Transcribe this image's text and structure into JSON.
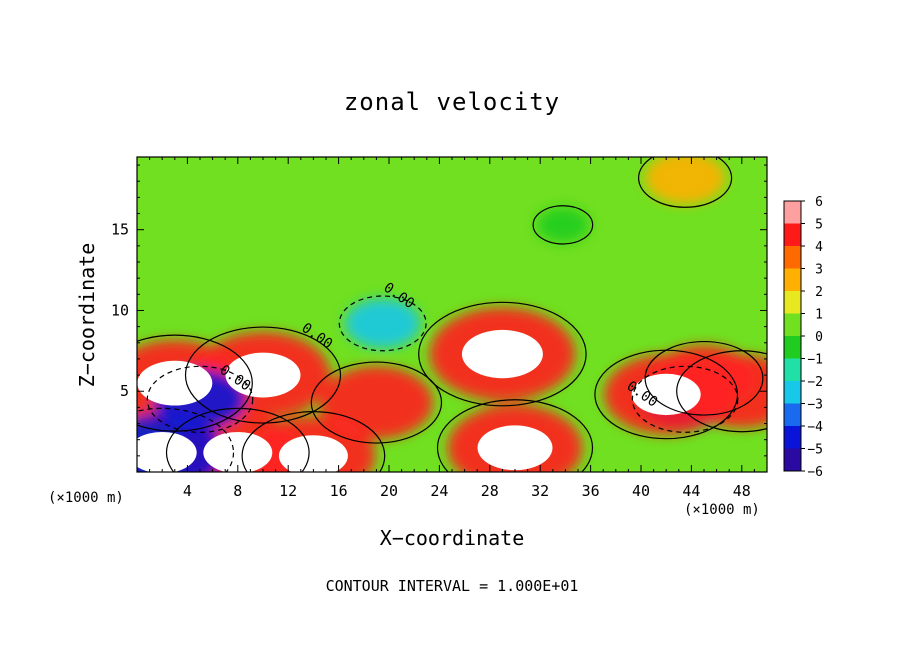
{
  "chart_data": {
    "type": "heatmap",
    "title": "zonal velocity",
    "xlabel": "X−coordinate",
    "ylabel": "Z−coordinate",
    "x_unit_label": "(×1000 m)",
    "x_ticks": [
      4,
      8,
      12,
      16,
      20,
      24,
      28,
      32,
      36,
      40,
      44,
      48
    ],
    "y_ticks": [
      5,
      10,
      15
    ],
    "xlim": [
      0,
      50
    ],
    "ylim": [
      0,
      19.5
    ],
    "colorbar": {
      "ticks": [
        6,
        5,
        4,
        3,
        2,
        1,
        0,
        -1,
        -2,
        -3,
        -4,
        -5,
        -6
      ],
      "tick_labels": [
        "6",
        "5",
        "4",
        "3",
        "2",
        "1",
        "0",
        "−1",
        "−2",
        "−3",
        "−4",
        "−5",
        "−6"
      ],
      "range": [
        -6,
        6
      ],
      "colors": [
        "#7a10a8",
        "#2a0aa0",
        "#0a14d8",
        "#1a6af0",
        "#18c8e8",
        "#20e0a8",
        "#20cc20",
        "#70e020",
        "#e8e820",
        "#ffb000",
        "#ff6a00",
        "#ff1a1a",
        "#ffa0a0"
      ]
    },
    "contour_labels": [
      "0.00",
      "0.00",
      "0.00",
      "0.00"
    ],
    "contour_label_positions": [
      [
        19.5,
        11.3
      ],
      [
        13,
        8.8
      ],
      [
        6.5,
        6.2
      ],
      [
        38.8,
        5.2
      ]
    ],
    "features": [
      {
        "x": 3,
        "z": 5.5,
        "value": 8
      },
      {
        "x": 10,
        "z": 6,
        "value": 8
      },
      {
        "x": 29,
        "z": 7.3,
        "value": 9
      },
      {
        "x": 30,
        "z": 1.5,
        "value": 8
      },
      {
        "x": 8,
        "z": 1.2,
        "value": 7
      },
      {
        "x": 14,
        "z": 1.0,
        "value": 7
      },
      {
        "x": 2,
        "z": 1.2,
        "value": -7
      },
      {
        "x": 33.8,
        "z": 15.3,
        "value": 0.3
      },
      {
        "x": 43.5,
        "z": 18.2,
        "value": 3
      },
      {
        "x": 19.5,
        "z": 9.2,
        "value": -2.5
      },
      {
        "x": 5,
        "z": 4.5,
        "value": -4
      },
      {
        "x": 19,
        "z": 4.3,
        "value": 6
      },
      {
        "x": 43.5,
        "z": 4.5,
        "value": -4
      },
      {
        "x": 45,
        "z": 5.8,
        "value": 5
      },
      {
        "x": 48,
        "z": 5,
        "value": 6
      },
      {
        "x": 42,
        "z": 4.8,
        "value": 7
      }
    ]
  },
  "footer": "CONTOUR INTERVAL = 1.000E+01"
}
